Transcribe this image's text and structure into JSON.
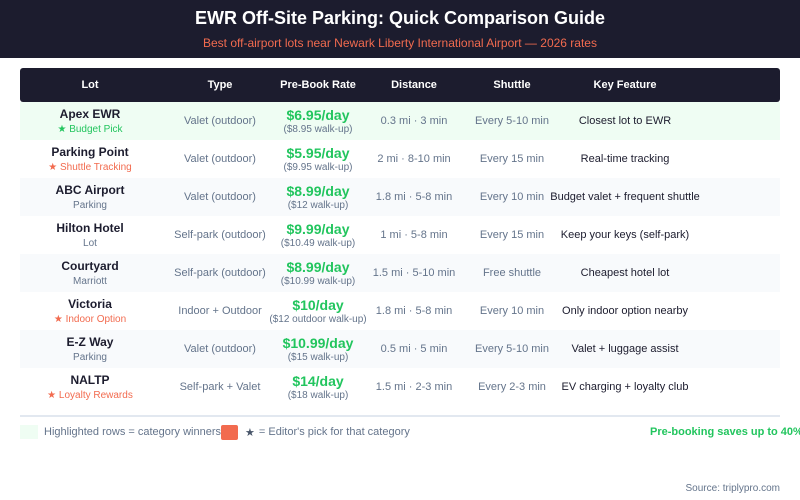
{
  "header": {
    "title": "EWR Off-Site Parking: Quick Comparison Guide",
    "subtitle": "Best off-airport lots near Newark Liberty International Airport — 2026 rates"
  },
  "columns": [
    "Lot",
    "Type",
    "Pre-Book Rate",
    "Distance",
    "Shuttle",
    "Key Feature"
  ],
  "rows": [
    {
      "name": "Apex EWR",
      "sub": "★ Budget Pick",
      "sub_style": "green",
      "type": "Valet (outdoor)",
      "rate": "$6.95/day",
      "walkup": "($8.95 walk-up)",
      "distance": "0.3 mi · 3 min",
      "shuttle": "Every 5-10 min",
      "feature": "Closest lot to EWR",
      "highlight": true
    },
    {
      "name": "Parking Point",
      "sub": "★ Shuttle Tracking",
      "sub_style": "orange",
      "type": "Valet (outdoor)",
      "rate": "$5.95/day",
      "walkup": "($9.95 walk-up)",
      "distance": "2 mi · 8-10 min",
      "shuttle": "Every 15 min",
      "feature": "Real-time tracking"
    },
    {
      "name": "ABC Airport",
      "sub": "Parking",
      "sub_style": "",
      "type": "Valet (outdoor)",
      "rate": "$8.99/day",
      "walkup": "($12 walk-up)",
      "distance": "1.8 mi · 5-8 min",
      "shuttle": "Every 10 min",
      "feature": "Budget valet + frequent shuttle"
    },
    {
      "name": "Hilton Hotel",
      "sub": "Lot",
      "sub_style": "",
      "type": "Self-park (outdoor)",
      "rate": "$9.99/day",
      "walkup": "($10.49 walk-up)",
      "distance": "1 mi · 5-8 min",
      "shuttle": "Every 15 min",
      "feature": "Keep your keys (self-park)"
    },
    {
      "name": "Courtyard",
      "sub": "Marriott",
      "sub_style": "",
      "type": "Self-park (outdoor)",
      "rate": "$8.99/day",
      "walkup": "($10.99 walk-up)",
      "distance": "1.5 mi · 5-10 min",
      "shuttle": "Free shuttle",
      "feature": "Cheapest hotel lot"
    },
    {
      "name": "Victoria",
      "sub": "★ Indoor Option",
      "sub_style": "orange",
      "type": "Indoor + Outdoor",
      "rate": "$10/day",
      "walkup": "($12 outdoor walk-up)",
      "distance": "1.8 mi · 5-8 min",
      "shuttle": "Every 10 min",
      "feature": "Only indoor option nearby"
    },
    {
      "name": "E-Z Way",
      "sub": "Parking",
      "sub_style": "",
      "type": "Valet (outdoor)",
      "rate": "$10.99/day",
      "walkup": "($15 walk-up)",
      "distance": "0.5 mi · 5 min",
      "shuttle": "Every 5-10 min",
      "feature": "Valet + luggage assist"
    },
    {
      "name": "NALTP",
      "sub": "★ Loyalty Rewards",
      "sub_style": "orange",
      "type": "Self-park + Valet",
      "rate": "$14/day",
      "walkup": "($18 walk-up)",
      "distance": "1.5 mi · 2-3 min",
      "shuttle": "Every 2-3 min",
      "feature": "EV charging + loyalty club"
    }
  ],
  "legend": {
    "highlight": "Highlighted rows = category winners",
    "star": "★",
    "editor": "= Editor's pick for that category",
    "savings": "Pre-booking saves up to 40%"
  },
  "source": "Source: triplypro.com",
  "colors": {
    "dark": "#1c1c2e",
    "green": "#22c55e",
    "orange": "#f26b4f",
    "highlight": "#effdf3"
  }
}
